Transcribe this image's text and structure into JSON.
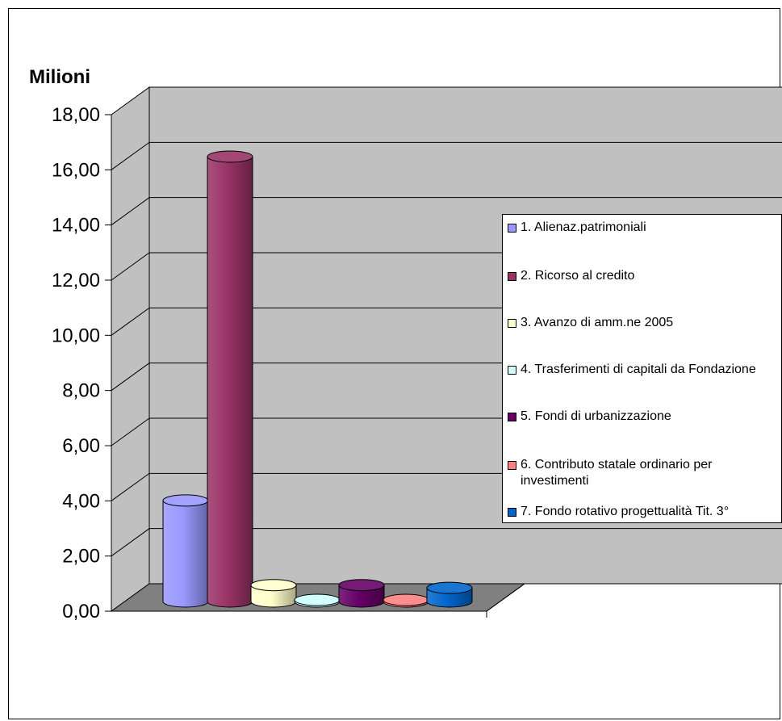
{
  "chart_data": {
    "type": "bar",
    "unit_label": "Milioni",
    "y_ticks": [
      "0,00",
      "2,00",
      "4,00",
      "6,00",
      "8,00",
      "10,00",
      "12,00",
      "14,00",
      "16,00",
      "18,00"
    ],
    "ylim": [
      0,
      18
    ],
    "grid": true,
    "legend_position": "right",
    "series": [
      {
        "name": "1.  Alienaz.patrimoniali",
        "value": 3.7,
        "color": "#9999ff"
      },
      {
        "name": "2.  Ricorso al credito",
        "value": 16.3,
        "color": "#993366"
      },
      {
        "name": "3.  Avanzo di amm.ne   2005",
        "value": 0.6,
        "color": "#ffffcc"
      },
      {
        "name": "4.  Trasferimenti di capitali da Fondazione",
        "value": 0.05,
        "color": "#ccffff"
      },
      {
        "name": "5.  Fondi di urbanizzazione",
        "value": 0.6,
        "color": "#660066"
      },
      {
        "name": "6.  Contributo statale ordinario per investimenti",
        "value": 0.02,
        "color": "#ff8080"
      },
      {
        "name": "7. Fondo rotativo progettualità Tit. 3°",
        "value": 0.5,
        "color": "#0066cc"
      }
    ]
  }
}
